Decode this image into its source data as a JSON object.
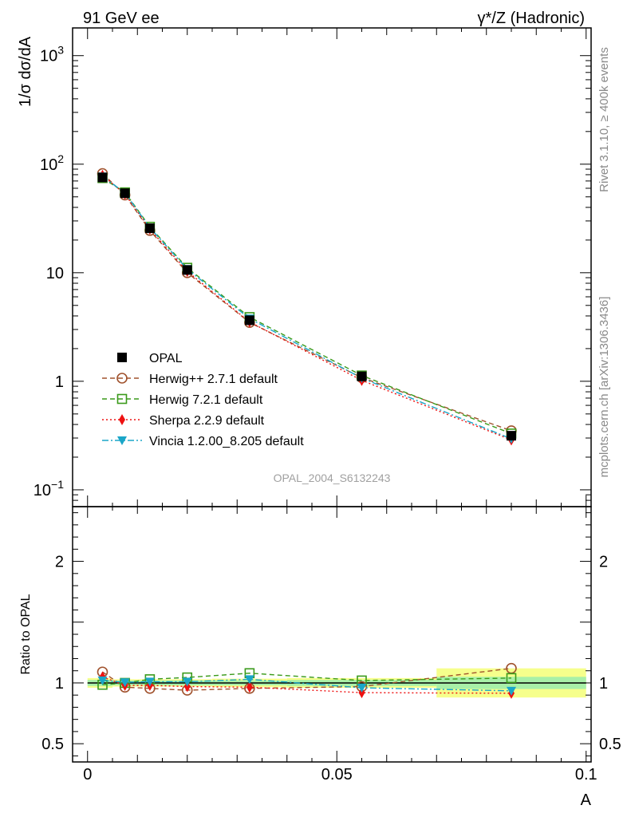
{
  "header": {
    "left": "91 GeV ee",
    "right": "γ*/Z (Hadronic)"
  },
  "side": {
    "version": "Rivet 3.1.10, ≥ 400k events",
    "site": "mcplots.cern.ch [arXiv:1306.3436]"
  },
  "watermark": "OPAL_2004_S6132243",
  "colors": {
    "opal": "#000000",
    "herwigpp": "#a0522d",
    "herwig7": "#3a9a1a",
    "sherpa": "#ee1111",
    "vincia": "#1aa6c8",
    "band_inner": "#a8f0a8",
    "band_outer": "#f6ff8c"
  },
  "chart_data": [
    {
      "type": "line",
      "panel": "main",
      "ylabel": "1/σ dσ/dA",
      "yscale": "log",
      "ylim": [
        0.07,
        1800
      ],
      "xlim": [
        -0.003,
        0.101
      ],
      "yticks": [
        {
          "v": 0.1,
          "base": "10",
          "exp": "−1"
        },
        {
          "v": 1,
          "label": "1"
        },
        {
          "v": 10,
          "label": "10"
        },
        {
          "v": 100,
          "base": "10",
          "exp": "2"
        },
        {
          "v": 1000,
          "base": "10",
          "exp": "3"
        }
      ],
      "x": [
        0.003,
        0.0075,
        0.0125,
        0.02,
        0.0325,
        0.055,
        0.085
      ],
      "series": [
        {
          "name": "OPAL",
          "key": "opal",
          "marker": "square-filled",
          "line": "none",
          "values": [
            75.5,
            54.0,
            25.7,
            10.6,
            3.65,
            1.11,
            0.315
          ]
        },
        {
          "name": "Herwig++ 2.7.1 default",
          "key": "herwigpp",
          "marker": "circle-open",
          "line": "dashed",
          "values": [
            82.0,
            52.0,
            24.5,
            10.0,
            3.48,
            1.08,
            0.35
          ]
        },
        {
          "name": "Herwig 7.2.1 default",
          "key": "herwig7",
          "marker": "square-open",
          "line": "dashed",
          "values": [
            74.5,
            55.0,
            26.5,
            11.1,
            3.9,
            1.13,
            0.33
          ]
        },
        {
          "name": "Sherpa 2.2.9 default",
          "key": "sherpa",
          "marker": "diamond-filled",
          "line": "dotted",
          "values": [
            79.0,
            53.0,
            25.2,
            10.3,
            3.52,
            1.02,
            0.288
          ]
        },
        {
          "name": "Vincia 1.2.00_8.205 default",
          "key": "vincia",
          "marker": "triangle-down-filled",
          "line": "dashdot",
          "values": [
            77.0,
            54.5,
            26.0,
            10.8,
            3.78,
            1.07,
            0.295
          ]
        }
      ]
    },
    {
      "type": "line",
      "panel": "ratio",
      "ylabel": "Ratio to OPAL",
      "xlabel": "A",
      "ylim": [
        0.35,
        2.45
      ],
      "xlim": [
        -0.003,
        0.101
      ],
      "xticks": [
        {
          "v": 0,
          "label": "0"
        },
        {
          "v": 0.05,
          "label": "0.05"
        },
        {
          "v": 0.1,
          "label": "0.1"
        }
      ],
      "yticks": [
        {
          "v": 0.5,
          "label": "0.5"
        },
        {
          "v": 1,
          "label": "1"
        },
        {
          "v": 2,
          "label": "2"
        }
      ],
      "x": [
        0.003,
        0.0075,
        0.0125,
        0.02,
        0.0325,
        0.055,
        0.085
      ],
      "band_bins": [
        {
          "x0": 0,
          "x1": 0.005,
          "inner": 0.025,
          "outer": 0.04
        },
        {
          "x0": 0.005,
          "x1": 0.01,
          "inner": 0.02,
          "outer": 0.03
        },
        {
          "x0": 0.01,
          "x1": 0.015,
          "inner": 0.02,
          "outer": 0.03
        },
        {
          "x0": 0.015,
          "x1": 0.025,
          "inner": 0.02,
          "outer": 0.03
        },
        {
          "x0": 0.025,
          "x1": 0.04,
          "inner": 0.02,
          "outer": 0.035
        },
        {
          "x0": 0.04,
          "x1": 0.07,
          "inner": 0.025,
          "outer": 0.04
        },
        {
          "x0": 0.07,
          "x1": 0.1,
          "inner": 0.05,
          "outer": 0.12
        }
      ],
      "series": [
        {
          "name": "Herwig++ 2.7.1 default",
          "key": "herwigpp",
          "marker": "circle-open",
          "line": "dashed",
          "values": [
            1.09,
            0.965,
            0.955,
            0.94,
            0.955,
            0.97,
            1.12
          ]
        },
        {
          "name": "Herwig 7.2.1 default",
          "key": "herwig7",
          "marker": "square-open",
          "line": "dashed",
          "values": [
            0.985,
            1.0,
            1.03,
            1.045,
            1.08,
            1.02,
            1.04
          ]
        },
        {
          "name": "Sherpa 2.2.9 default",
          "key": "sherpa",
          "marker": "diamond-filled",
          "line": "dotted",
          "values": [
            1.05,
            0.98,
            0.98,
            0.97,
            0.965,
            0.92,
            0.915
          ]
        },
        {
          "name": "Vincia 1.2.00_8.205 default",
          "key": "vincia",
          "marker": "triangle-down-filled",
          "line": "dashdot",
          "values": [
            1.02,
            1.005,
            1.01,
            1.01,
            1.03,
            0.96,
            0.935
          ]
        }
      ]
    }
  ]
}
